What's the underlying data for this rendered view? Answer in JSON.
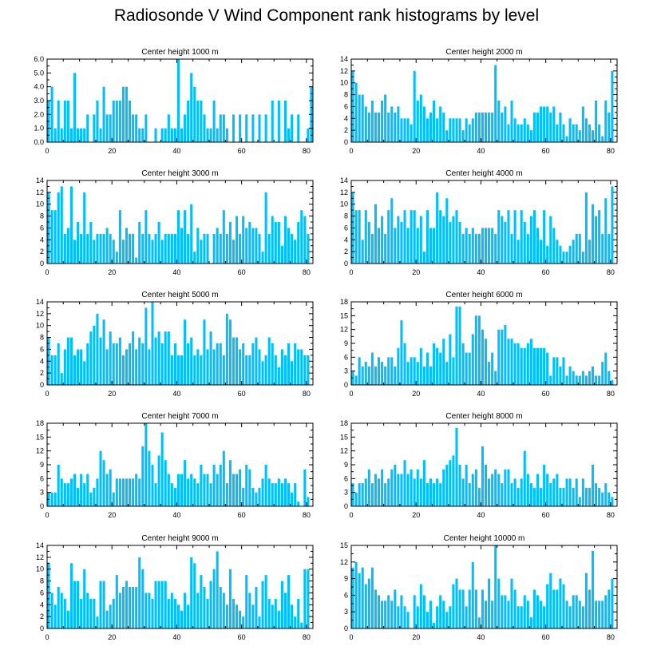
{
  "title": "Radiosonde V Wind Component rank histograms by level",
  "bar_color": "#00bfff",
  "chart_data": [
    {
      "type": "bar",
      "title": "Center height 1000 m",
      "x_start": 0,
      "xlim": [
        0,
        82
      ],
      "xticks": [
        0,
        20,
        40,
        60,
        80
      ],
      "ylim": [
        0,
        6
      ],
      "yticks": [
        0,
        1,
        2,
        3,
        4,
        5,
        6
      ],
      "ytick_labels": [
        "0.0",
        "1.0",
        "2.0",
        "3.0",
        "4.0",
        "5.0",
        "6.0"
      ],
      "values": [
        3,
        4,
        1,
        3,
        1,
        3,
        3,
        1,
        5,
        1,
        1,
        1,
        2,
        0,
        2,
        3,
        1,
        4,
        2,
        2,
        3,
        3,
        3,
        4,
        4,
        3,
        2,
        2,
        1,
        1,
        2,
        0,
        0,
        1,
        0,
        1,
        1,
        2,
        1,
        1,
        6,
        1,
        2,
        3,
        5,
        4,
        3,
        3,
        2,
        1,
        1,
        3,
        1,
        2,
        2,
        1,
        0,
        2,
        0,
        2,
        0,
        2,
        0,
        2,
        0,
        2,
        0,
        2,
        0,
        3,
        0,
        3,
        0,
        3,
        1,
        2,
        0,
        2,
        0,
        0,
        1,
        4
      ]
    },
    {
      "type": "bar",
      "title": "Center height 2000 m",
      "x_start": 0,
      "xlim": [
        0,
        82
      ],
      "xticks": [
        0,
        20,
        40,
        60,
        80
      ],
      "ylim": [
        0,
        14
      ],
      "yticks": [
        0,
        2,
        4,
        6,
        8,
        10,
        12,
        14
      ],
      "ytick_labels": [
        "0",
        "2",
        "4",
        "6",
        "8",
        "10",
        "12",
        "14"
      ],
      "values": [
        12,
        10,
        8,
        8,
        6,
        5,
        7,
        5,
        5,
        7,
        8,
        5,
        6,
        5,
        6,
        4,
        4,
        4,
        3,
        12,
        7,
        8,
        6,
        4,
        5,
        7,
        4,
        6,
        5,
        2,
        4,
        4,
        4,
        4,
        2,
        4,
        3,
        4,
        5,
        5,
        5,
        5,
        5,
        5,
        13,
        7,
        5,
        6,
        3,
        7,
        4,
        3,
        3,
        4,
        3,
        2,
        5,
        5,
        6,
        6,
        6,
        5,
        6,
        3,
        5,
        3,
        1,
        4,
        3,
        3,
        2,
        6,
        4,
        3,
        2,
        7,
        3,
        1,
        7,
        5,
        12
      ]
    },
    {
      "type": "bar",
      "title": "Center height 3000 m",
      "x_start": 0,
      "xlim": [
        0,
        82
      ],
      "xticks": [
        0,
        20,
        40,
        60,
        80
      ],
      "ylim": [
        0,
        14
      ],
      "yticks": [
        0,
        2,
        4,
        6,
        8,
        10,
        12,
        14
      ],
      "ytick_labels": [
        "0",
        "2",
        "4",
        "6",
        "8",
        "10",
        "12",
        "14"
      ],
      "values": [
        12,
        9,
        9,
        12,
        13,
        5,
        6,
        13,
        4,
        7,
        5,
        12,
        5,
        7,
        4,
        5,
        5,
        5,
        6,
        5,
        4,
        2,
        9,
        4,
        6,
        5,
        5,
        1,
        7,
        5,
        9,
        5,
        4,
        5,
        7,
        4,
        5,
        5,
        5,
        5,
        9,
        6,
        9,
        5,
        10,
        2,
        6,
        4,
        5,
        5,
        0,
        5,
        6,
        5,
        9,
        5,
        7,
        4,
        8,
        5,
        8,
        6,
        7,
        6,
        6,
        5,
        2,
        12,
        5,
        8,
        7,
        7,
        3,
        8,
        6,
        5,
        4,
        7,
        9,
        8,
        5
      ]
    },
    {
      "type": "bar",
      "title": "Center height 4000 m",
      "x_start": 0,
      "xlim": [
        0,
        82
      ],
      "xticks": [
        0,
        20,
        40,
        60,
        80
      ],
      "ylim": [
        0,
        14
      ],
      "yticks": [
        0,
        2,
        4,
        6,
        8,
        10,
        12,
        14
      ],
      "ytick_labels": [
        "0",
        "2",
        "4",
        "6",
        "8",
        "10",
        "12",
        "14"
      ],
      "values": [
        12,
        9,
        9,
        4,
        9,
        7,
        5,
        10,
        6,
        8,
        5,
        9,
        11,
        6,
        8,
        7,
        9,
        6,
        9,
        9,
        6,
        8,
        2,
        9,
        6,
        6,
        12,
        9,
        8,
        11,
        7,
        8,
        9,
        7,
        5,
        6,
        5,
        6,
        5,
        5,
        6,
        6,
        6,
        6,
        5,
        9,
        8,
        7,
        9,
        5,
        9,
        4,
        9,
        7,
        5,
        8,
        9,
        6,
        4,
        9,
        3,
        8,
        6,
        4,
        3,
        2,
        2,
        3,
        4,
        5,
        5,
        2,
        12,
        4,
        10,
        8,
        9,
        5,
        11,
        5,
        13
      ]
    },
    {
      "type": "bar",
      "title": "Center height 5000 m",
      "x_start": 0,
      "xlim": [
        0,
        82
      ],
      "xticks": [
        0,
        20,
        40,
        60,
        80
      ],
      "ylim": [
        0,
        14
      ],
      "yticks": [
        0,
        2,
        4,
        6,
        8,
        10,
        12,
        14
      ],
      "ytick_labels": [
        "0",
        "2",
        "4",
        "6",
        "8",
        "10",
        "12",
        "14"
      ],
      "values": [
        8,
        5,
        5,
        7,
        2,
        6,
        8,
        8,
        5,
        6,
        6,
        4,
        7,
        9,
        10,
        12,
        8,
        11,
        6,
        9,
        7,
        7,
        8,
        5,
        6,
        7,
        9,
        6,
        8,
        7,
        13,
        6,
        14,
        8,
        9,
        7,
        9,
        9,
        5,
        7,
        5,
        5,
        11,
        7,
        8,
        5,
        6,
        5,
        11,
        6,
        9,
        6,
        7,
        7,
        5,
        12,
        11,
        8,
        8,
        6,
        7,
        5,
        5,
        7,
        8,
        6,
        4,
        5,
        8,
        7,
        5,
        3,
        6,
        5,
        7,
        4,
        7,
        6,
        6,
        5,
        5
      ]
    },
    {
      "type": "bar",
      "title": "Center height 6000 m",
      "x_start": 0,
      "xlim": [
        0,
        82
      ],
      "xticks": [
        0,
        20,
        40,
        60,
        80
      ],
      "ylim": [
        0,
        18
      ],
      "yticks": [
        0,
        3,
        6,
        9,
        12,
        15,
        18
      ],
      "ytick_labels": [
        "0",
        "3",
        "6",
        "9",
        "12",
        "15",
        "18"
      ],
      "values": [
        3,
        2,
        6,
        4,
        5,
        4,
        7,
        4,
        6,
        5,
        4,
        6,
        6,
        4,
        8,
        14,
        9,
        5,
        6,
        6,
        5,
        8,
        4,
        7,
        4,
        9,
        8,
        7,
        10,
        5,
        11,
        6,
        17,
        17,
        9,
        7,
        7,
        11,
        15,
        15,
        12,
        10,
        5,
        7,
        3,
        12,
        12,
        13,
        10,
        10,
        9,
        9,
        8,
        8,
        9,
        10,
        8,
        8,
        8,
        8,
        7,
        2,
        6,
        6,
        4,
        6,
        2,
        4,
        3,
        2,
        2,
        3,
        2,
        3,
        4,
        2,
        2,
        5,
        7,
        3,
        1
      ]
    },
    {
      "type": "bar",
      "title": "Center height 7000 m",
      "x_start": 0,
      "xlim": [
        0,
        82
      ],
      "xticks": [
        0,
        20,
        40,
        60,
        80
      ],
      "ylim": [
        0,
        18
      ],
      "yticks": [
        0,
        3,
        6,
        9,
        12,
        15,
        18
      ],
      "ytick_labels": [
        "0",
        "3",
        "6",
        "9",
        "12",
        "15",
        "18"
      ],
      "values": [
        3,
        3,
        3,
        9,
        6,
        5,
        5,
        6,
        7,
        4,
        7,
        5,
        7,
        3,
        4,
        6,
        12,
        10,
        7,
        8,
        3,
        6,
        6,
        6,
        6,
        6,
        6,
        7,
        6,
        13,
        18,
        12,
        9,
        5,
        11,
        16,
        10,
        7,
        5,
        4,
        7,
        7,
        10,
        6,
        7,
        6,
        5,
        9,
        7,
        7,
        5,
        9,
        7,
        9,
        12,
        5,
        10,
        7,
        7,
        8,
        4,
        9,
        8,
        4,
        3,
        4,
        6,
        9,
        6,
        5,
        5,
        6,
        5,
        6,
        5,
        3,
        5,
        1,
        0,
        8,
        2
      ]
    },
    {
      "type": "bar",
      "title": "Center height 8000 m",
      "x_start": 0,
      "xlim": [
        0,
        82
      ],
      "xticks": [
        0,
        20,
        40,
        60,
        80
      ],
      "ylim": [
        0,
        18
      ],
      "yticks": [
        0,
        3,
        6,
        9,
        12,
        15,
        18
      ],
      "ytick_labels": [
        "0",
        "3",
        "6",
        "9",
        "12",
        "15",
        "18"
      ],
      "values": [
        5,
        3,
        5,
        5,
        6,
        8,
        5,
        7,
        6,
        8,
        5,
        6,
        8,
        9,
        7,
        7,
        10,
        7,
        8,
        6,
        8,
        6,
        10,
        5,
        6,
        5,
        6,
        5,
        8,
        9,
        10,
        11,
        17,
        9,
        6,
        9,
        5,
        7,
        8,
        4,
        13,
        9,
        6,
        7,
        8,
        7,
        5,
        8,
        8,
        5,
        6,
        4,
        6,
        12,
        7,
        5,
        4,
        7,
        4,
        9,
        7,
        5,
        6,
        7,
        4,
        4,
        6,
        6,
        4,
        6,
        2,
        6,
        4,
        4,
        9,
        5,
        4,
        3,
        5,
        3,
        2
      ]
    },
    {
      "type": "bar",
      "title": "Center height 9000 m",
      "x_start": 0,
      "xlim": [
        0,
        82
      ],
      "xticks": [
        0,
        20,
        40,
        60,
        80
      ],
      "ylim": [
        0,
        14
      ],
      "yticks": [
        0,
        2,
        4,
        6,
        8,
        10,
        12,
        14
      ],
      "ytick_labels": [
        "0",
        "2",
        "4",
        "6",
        "8",
        "10",
        "12",
        "14"
      ],
      "values": [
        11,
        6,
        4,
        7,
        6,
        5,
        3,
        11,
        8,
        8,
        5,
        10,
        6,
        5,
        5,
        2,
        8,
        8,
        3,
        4,
        5,
        9,
        6,
        7,
        8,
        7,
        7,
        7,
        12,
        10,
        6,
        6,
        5,
        8,
        8,
        8,
        8,
        5,
        6,
        5,
        4,
        3,
        6,
        4,
        12,
        11,
        6,
        9,
        7,
        5,
        8,
        10,
        13,
        7,
        6,
        4,
        10,
        5,
        4,
        3,
        2,
        9,
        6,
        4,
        7,
        2,
        8,
        9,
        5,
        4,
        5,
        3,
        8,
        6,
        9,
        4,
        2,
        5,
        1,
        10,
        10
      ]
    },
    {
      "type": "bar",
      "title": "Center height 10000 m",
      "x_start": 0,
      "xlim": [
        0,
        82
      ],
      "xticks": [
        0,
        20,
        40,
        60,
        80
      ],
      "ylim": [
        0,
        15
      ],
      "yticks": [
        0,
        3,
        6,
        9,
        12,
        15
      ],
      "ytick_labels": [
        "0",
        "3",
        "6",
        "9",
        "12",
        "15"
      ],
      "values": [
        11,
        12,
        10,
        11,
        8,
        9,
        11,
        7,
        6,
        5,
        5,
        6,
        5,
        7,
        4,
        6,
        4,
        3,
        0,
        6,
        4,
        8,
        6,
        3,
        5,
        1,
        4,
        6,
        5,
        3,
        4,
        8,
        9,
        7,
        7,
        4,
        7,
        12,
        7,
        2,
        7,
        5,
        9,
        5,
        15,
        9,
        6,
        6,
        5,
        9,
        7,
        4,
        4,
        6,
        5,
        2,
        7,
        6,
        5,
        4,
        8,
        10,
        7,
        7,
        9,
        8,
        5,
        4,
        6,
        6,
        5,
        4,
        10,
        7,
        14,
        5,
        5,
        5,
        6,
        7,
        9
      ]
    }
  ]
}
